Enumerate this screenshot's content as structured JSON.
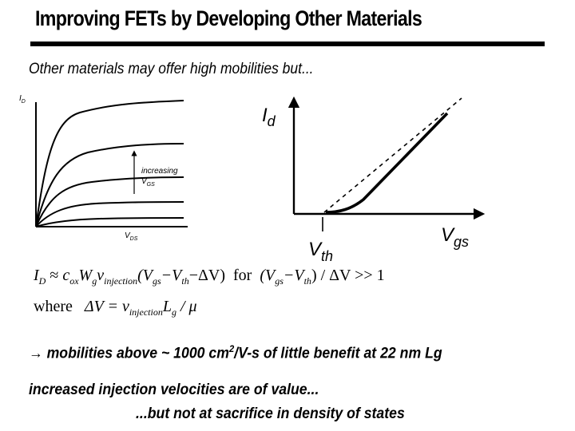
{
  "slide": {
    "title": "Improving FETs by Developing Other Materials",
    "subtitle": "Other materials may offer high mobilities but...",
    "bullet_prefix": "→ mobilities above ~ 1000 cm",
    "bullet_sup": "2",
    "bullet_suffix": "/V-s of little benefit at 22 nm Lg",
    "line_a": "increased injection velocities are of value...",
    "line_b": "...but not at sacrifice in density of states"
  },
  "left_plot": {
    "y_label_main": "I",
    "y_label_sub": "D",
    "x_label_main": "V",
    "x_label_sub": "DS",
    "annotation_line1": "increasing",
    "annotation_line2_main": "V",
    "annotation_line2_sub": "GS"
  },
  "right_plot": {
    "y_label_main": "I",
    "y_label_sub": "d",
    "x_label_main": "V",
    "x_label_sub": "gs",
    "vth_main": "V",
    "vth_sub": "th"
  },
  "equations": {
    "eq1": {
      "lhs": "I",
      "lhs_sub": "D",
      "approx": "≈",
      "c": "c",
      "c_sub": "ox",
      "w": "W",
      "w_sub": "g",
      "v": "v",
      "v_sub": "injection",
      "paren": "(V",
      "paren_sub1": "gs",
      "minus_v": "−V",
      "minus_v_sub": "th",
      "end": "−ΔV)",
      "for_word": "for",
      "cond_open": "(V",
      "cond_sub1": "gs",
      "cond_minus": "−V",
      "cond_sub2": "th",
      "cond_end": ") / ΔV >> 1"
    },
    "eq2": {
      "where_word": "where",
      "lhs": "ΔV = v",
      "v_sub": "injection",
      "l": "L",
      "l_sub": "g",
      "end": "/ μ"
    }
  },
  "colors": {
    "text": "#000000",
    "background": "#ffffff"
  }
}
